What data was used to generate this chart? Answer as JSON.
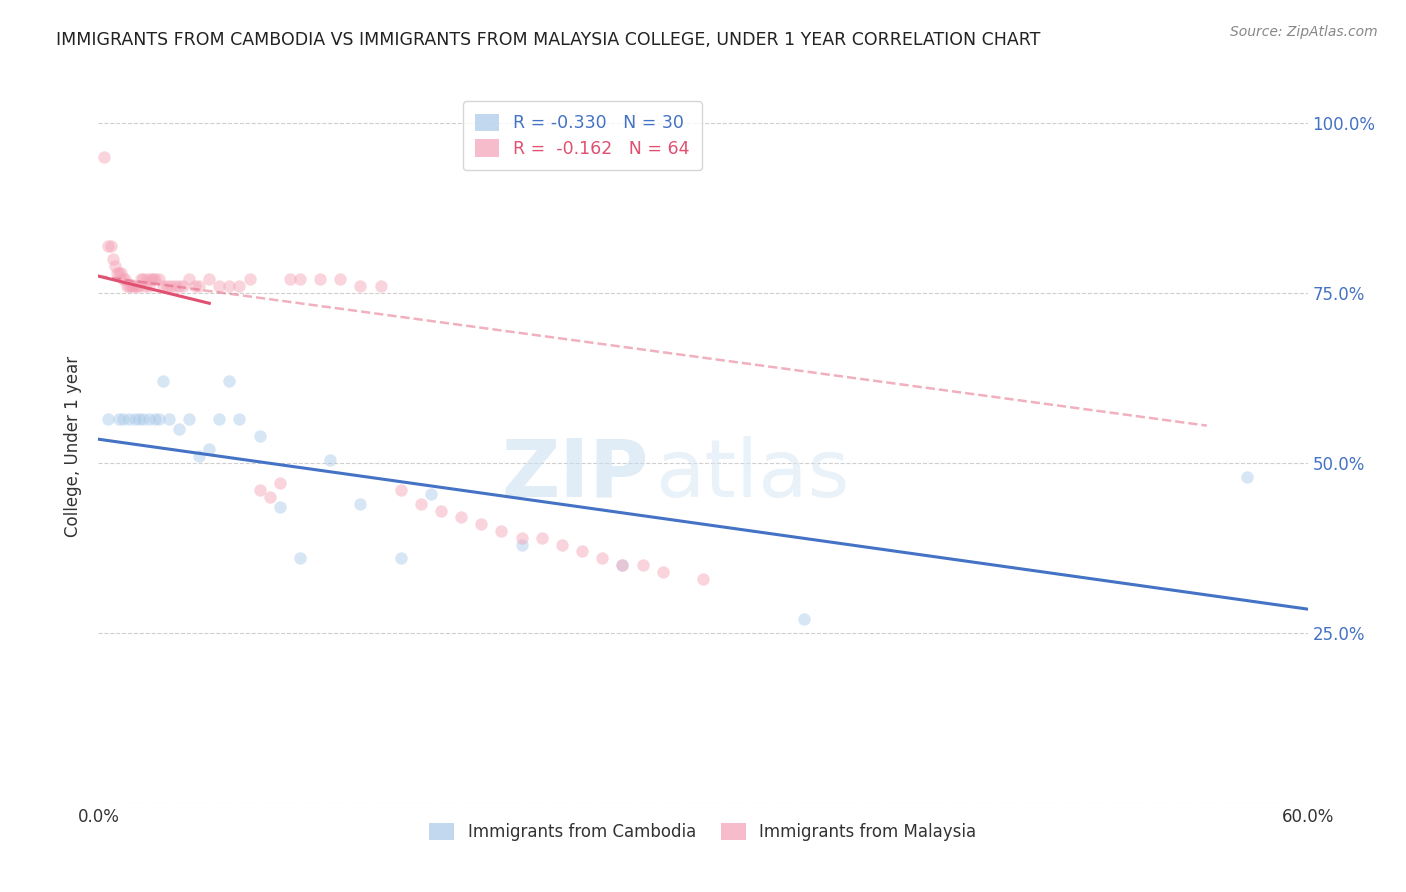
{
  "title": "IMMIGRANTS FROM CAMBODIA VS IMMIGRANTS FROM MALAYSIA COLLEGE, UNDER 1 YEAR CORRELATION CHART",
  "source": "Source: ZipAtlas.com",
  "ylabel": "College, Under 1 year",
  "xmin": 0.0,
  "xmax": 0.6,
  "ymin": 0.0,
  "ymax": 1.05,
  "x_ticks": [
    0.0,
    0.1,
    0.2,
    0.3,
    0.4,
    0.5,
    0.6
  ],
  "y_ticks": [
    0.0,
    0.25,
    0.5,
    0.75,
    1.0
  ],
  "y_tick_labels_right": [
    "",
    "25.0%",
    "50.0%",
    "75.0%",
    "100.0%"
  ],
  "watermark_zip": "ZIP",
  "watermark_atlas": "atlas",
  "series_cambodia": {
    "name": "Immigrants from Cambodia",
    "color": "#a8c8e8",
    "x": [
      0.005,
      0.01,
      0.012,
      0.015,
      0.018,
      0.02,
      0.022,
      0.025,
      0.028,
      0.03,
      0.032,
      0.035,
      0.04,
      0.045,
      0.05,
      0.055,
      0.06,
      0.065,
      0.07,
      0.08,
      0.09,
      0.1,
      0.115,
      0.13,
      0.15,
      0.165,
      0.21,
      0.26,
      0.35,
      0.57
    ],
    "y": [
      0.565,
      0.565,
      0.565,
      0.565,
      0.565,
      0.565,
      0.565,
      0.565,
      0.565,
      0.565,
      0.62,
      0.565,
      0.55,
      0.565,
      0.51,
      0.52,
      0.565,
      0.62,
      0.565,
      0.54,
      0.435,
      0.36,
      0.505,
      0.44,
      0.36,
      0.455,
      0.38,
      0.35,
      0.27,
      0.48
    ]
  },
  "series_malaysia": {
    "name": "Immigrants from Malaysia",
    "color": "#f4a0b5",
    "x": [
      0.003,
      0.005,
      0.006,
      0.007,
      0.008,
      0.009,
      0.01,
      0.011,
      0.012,
      0.013,
      0.014,
      0.015,
      0.016,
      0.017,
      0.018,
      0.019,
      0.02,
      0.021,
      0.022,
      0.023,
      0.024,
      0.025,
      0.026,
      0.027,
      0.028,
      0.03,
      0.032,
      0.034,
      0.036,
      0.038,
      0.04,
      0.042,
      0.045,
      0.048,
      0.05,
      0.055,
      0.06,
      0.065,
      0.07,
      0.075,
      0.08,
      0.085,
      0.09,
      0.095,
      0.1,
      0.11,
      0.12,
      0.13,
      0.14,
      0.15,
      0.16,
      0.17,
      0.18,
      0.19,
      0.2,
      0.21,
      0.22,
      0.23,
      0.24,
      0.25,
      0.26,
      0.27,
      0.28,
      0.3
    ],
    "y": [
      0.95,
      0.82,
      0.82,
      0.8,
      0.79,
      0.78,
      0.78,
      0.78,
      0.77,
      0.77,
      0.76,
      0.76,
      0.76,
      0.76,
      0.76,
      0.76,
      0.76,
      0.77,
      0.77,
      0.76,
      0.77,
      0.76,
      0.77,
      0.77,
      0.77,
      0.77,
      0.76,
      0.76,
      0.76,
      0.76,
      0.76,
      0.76,
      0.77,
      0.76,
      0.76,
      0.77,
      0.76,
      0.76,
      0.76,
      0.77,
      0.46,
      0.45,
      0.47,
      0.77,
      0.77,
      0.77,
      0.77,
      0.76,
      0.76,
      0.46,
      0.44,
      0.43,
      0.42,
      0.41,
      0.4,
      0.39,
      0.39,
      0.38,
      0.37,
      0.36,
      0.35,
      0.35,
      0.34,
      0.33
    ]
  },
  "trendline_cambodia_color": "#4472c4",
  "trendline_cambodia_x0": 0.0,
  "trendline_cambodia_x1": 0.6,
  "trendline_cambodia_y0": 0.535,
  "trendline_cambodia_y1": 0.285,
  "trendline_malaysia_color": "#e05070",
  "trendline_malaysia_solid_x0": 0.0,
  "trendline_malaysia_solid_x1": 0.055,
  "trendline_malaysia_solid_y0": 0.775,
  "trendline_malaysia_solid_y1": 0.735,
  "trendline_malaysia_dash_x0": 0.0,
  "trendline_malaysia_dash_x1": 0.55,
  "trendline_malaysia_dash_y0": 0.775,
  "trendline_malaysia_dash_y1": 0.555,
  "background_color": "#ffffff",
  "grid_color": "#bbbbbb",
  "title_color": "#222222",
  "right_axis_color": "#4472c4",
  "marker_size": 80,
  "marker_alpha": 0.45,
  "legend_R_cam": "R = -0.330",
  "legend_N_cam": "N = 30",
  "legend_R_mal": "R =  -0.162",
  "legend_N_mal": "N = 64"
}
